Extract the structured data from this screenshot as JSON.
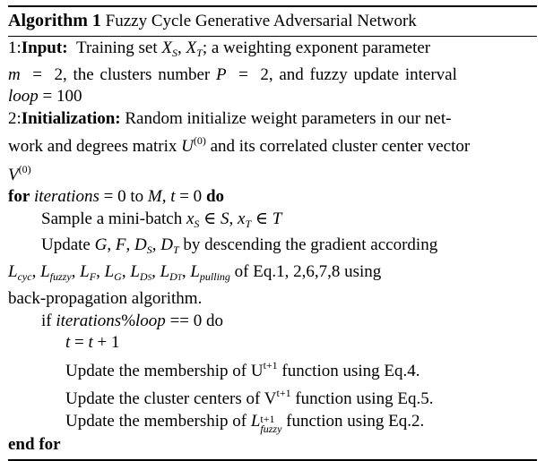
{
  "algorithm": {
    "label": "Algorithm 1",
    "name": "Fuzzy Cycle Generative Adversarial Network",
    "input_prefix": "1:",
    "input_label": "Input:",
    "input_text_1": "Training set X",
    "input_text_2": ", X",
    "input_text_3": "; a weighting exponent parameter",
    "input_line2": "m = 2, the clusters number P = 2, and fuzzy update interval",
    "input_line3": "loop = 100",
    "init_prefix": "2:",
    "init_label": "Initialization:",
    "init_line1": "Random initialize weight parameters in our net-",
    "init_line2_a": "work and degrees matrix U",
    "init_line2_sup": "(0)",
    "init_line2_b": " and its correlated cluster center vector",
    "init_line3": "V",
    "init_line3_sup": "(0)",
    "for_kw": "for",
    "for_cond": " iterations = 0 to M, t = 0 ",
    "do_kw": "do",
    "sample_line": "Sample a mini-batch x",
    "sample_line_b": " ∈ S, x",
    "sample_line_c": " ∈ T",
    "update1_line1": "Update G, F, D",
    "update1_line1_b": ", D",
    "update1_line1_c": " by descending the gradient according",
    "loss_line": "L",
    "loss_suffix": " of Eq.1, 2,6,7,8 using",
    "backprop_line": "back-propagation algorithm.",
    "if_line": "if iterations%loop == 0 do",
    "t_update": "t = t + 1",
    "upd_u_a": "Update the membership of U",
    "upd_u_sup": "t+1",
    "upd_u_b": " function using Eq.4.",
    "upd_v_a": "Update the cluster centers of V",
    "upd_v_sup": "t+1",
    "upd_v_b": " function using Eq.5.",
    "upd_l_a": "Update the membership of L",
    "upd_l_sup": "t+1",
    "upd_l_sub": "fuzzy",
    "upd_l_b": " function using Eq.2.",
    "endfor_kw": "end for"
  }
}
